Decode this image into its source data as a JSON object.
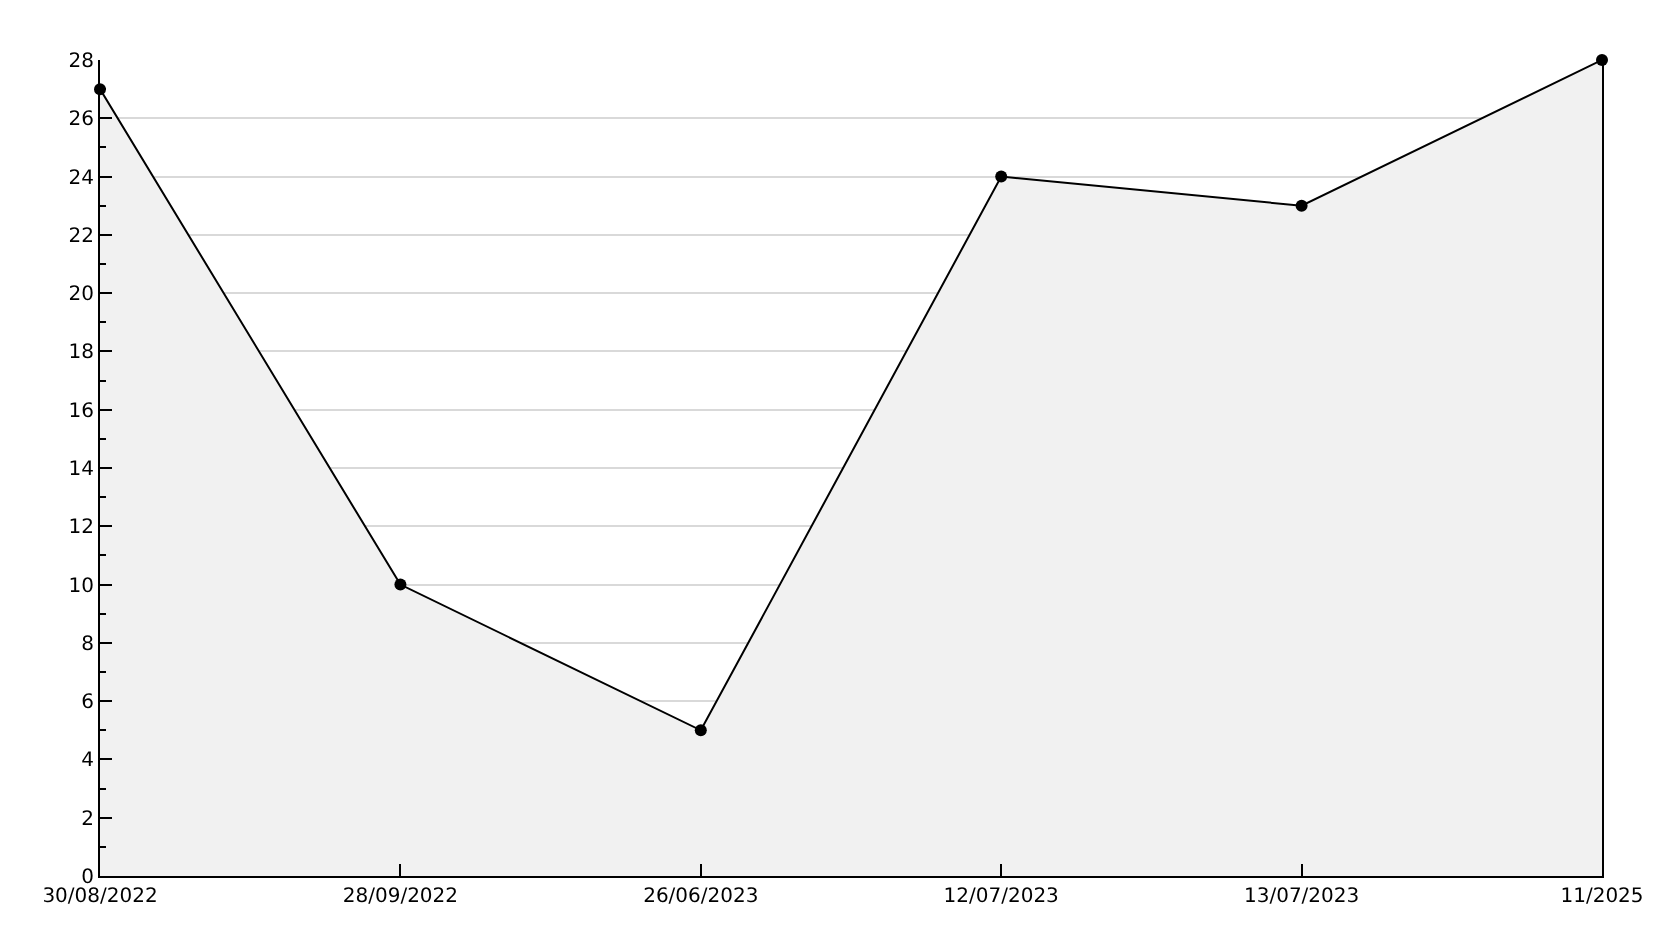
{
  "chart_data": {
    "type": "area",
    "categories": [
      "30/08/2022",
      "28/09/2022",
      "26/06/2023",
      "12/07/2023",
      "13/07/2023",
      "11/2025"
    ],
    "values": [
      27,
      10,
      5,
      24,
      23,
      28
    ],
    "color": "#f1f1f1",
    "ylim": [
      0,
      28
    ],
    "yticks": [
      0,
      {
        "value": 1,
        "label": null
      },
      2,
      {
        "value": 3,
        "label": null
      },
      4,
      {
        "value": 5,
        "label": null
      },
      6,
      {
        "value": 7,
        "label": null
      },
      8,
      {
        "value": 9,
        "label": null
      },
      10,
      {
        "value": 11,
        "label": null
      },
      12,
      {
        "value": 13,
        "label": null
      },
      14,
      {
        "value": 15,
        "label": null
      },
      16,
      {
        "value": 17,
        "label": null
      },
      18,
      {
        "value": 19,
        "label": null
      },
      20,
      {
        "value": 21,
        "label": null
      },
      22,
      {
        "value": 23,
        "label": null
      },
      24,
      {
        "value": 25,
        "label": null
      },
      26,
      {
        "value": 27,
        "label": null
      },
      28
    ],
    "grid": "y",
    "marker": "circle",
    "line_style": "solid"
  }
}
